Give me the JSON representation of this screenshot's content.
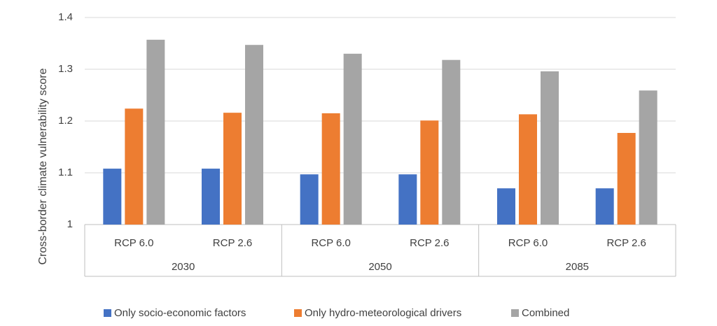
{
  "chart_data": {
    "type": "bar",
    "y_label": "Cross-border climate vulnerability score",
    "categories": [
      "RCP 6.0",
      "RCP 2.6",
      "RCP 6.0",
      "RCP 2.6",
      "RCP 6.0",
      "RCP 2.6"
    ],
    "category_groups": [
      "2030",
      "2050",
      "2085"
    ],
    "series": [
      {
        "name": "Only socio-economic factors",
        "color": "#4472c4",
        "values": [
          1.108,
          1.108,
          1.097,
          1.097,
          1.07,
          1.07
        ]
      },
      {
        "name": "Only hydro-meteorological drivers",
        "color": "#ed7d31",
        "values": [
          1.224,
          1.216,
          1.215,
          1.201,
          1.213,
          1.177
        ]
      },
      {
        "name": "Combined",
        "color": "#a5a5a5",
        "values": [
          1.357,
          1.347,
          1.33,
          1.318,
          1.296,
          1.259
        ]
      }
    ],
    "ylim": [
      1,
      1.4
    ],
    "yticks": [
      1,
      1.1,
      1.2,
      1.3,
      1.4
    ],
    "grid": true,
    "legend": "bottom"
  }
}
